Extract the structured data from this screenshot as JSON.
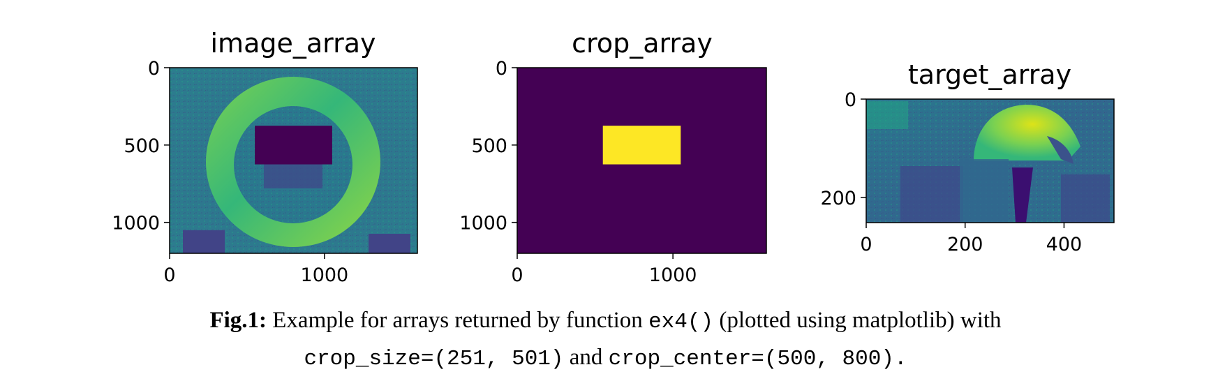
{
  "figure": {
    "caption": {
      "label": "Fig.1:",
      "line1_text_a": "Example for arrays returned by function",
      "line1_code": "ex4()",
      "line1_text_b": "(plotted using matplotlib) with",
      "line2_code_a": "crop_size=(251, 501)",
      "line2_text": "and",
      "line2_code_b": "crop_center=(500, 800)."
    }
  },
  "chart_data": [
    {
      "type": "heatmap",
      "title": "image_array",
      "xlim": [
        0,
        1600
      ],
      "ylim": [
        1200,
        0
      ],
      "xticks": [
        0,
        1000
      ],
      "yticks": [
        0,
        500,
        1000
      ],
      "colormap": "viridis",
      "hidden_region": {
        "x": [
          550,
          1050
        ],
        "y": [
          375,
          625
        ],
        "value": 0
      }
    },
    {
      "type": "heatmap",
      "title": "crop_array",
      "xlim": [
        0,
        1600
      ],
      "ylim": [
        1200,
        0
      ],
      "xticks": [
        0,
        1000
      ],
      "yticks": [
        0,
        500,
        1000
      ],
      "colormap": "viridis",
      "background_value": 0,
      "region": {
        "x": [
          550,
          1050
        ],
        "y": [
          375,
          625
        ],
        "value": 1
      }
    },
    {
      "type": "heatmap",
      "title": "target_array",
      "xlim": [
        0,
        501
      ],
      "ylim": [
        251,
        0
      ],
      "xticks": [
        0,
        200,
        400
      ],
      "yticks": [
        0,
        200
      ],
      "colormap": "viridis"
    }
  ]
}
